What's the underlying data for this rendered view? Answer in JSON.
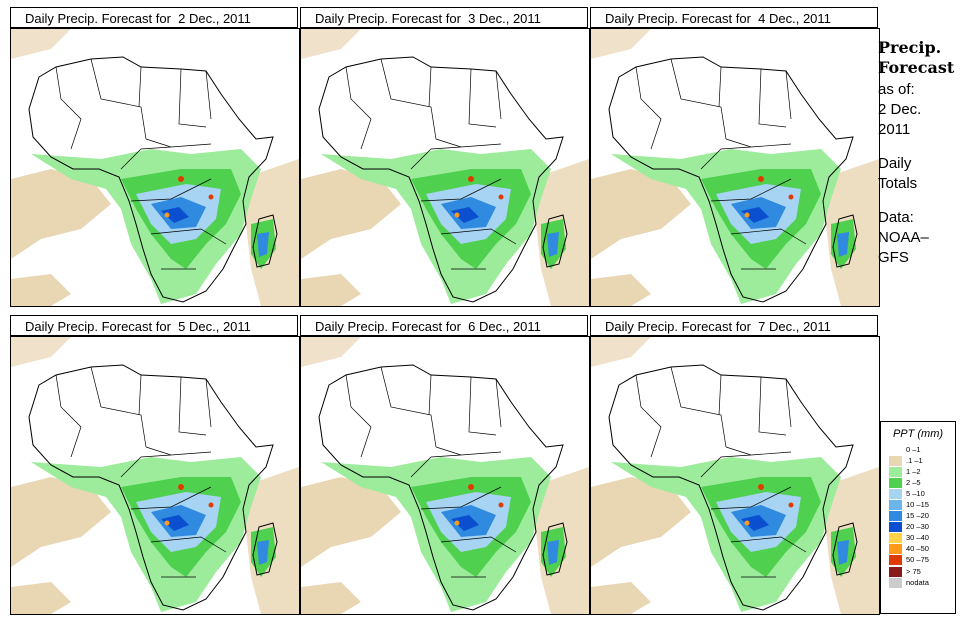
{
  "panels": [
    {
      "title": "Daily Precip. Forecast for  2 Dec., 2011",
      "day": 2
    },
    {
      "title": "Daily Precip. Forecast for  3 Dec., 2011",
      "day": 3
    },
    {
      "title": "Daily Precip. Forecast for  4 Dec., 2011",
      "day": 4
    },
    {
      "title": "Daily Precip. Forecast for  5 Dec., 2011",
      "day": 5
    },
    {
      "title": "Daily Precip. Forecast for  6 Dec., 2011",
      "day": 6
    },
    {
      "title": "Daily Precip. Forecast for  7 Dec., 2011",
      "day": 7
    }
  ],
  "sidebar": {
    "title_line1": "Precip.",
    "title_line2": "Forecast",
    "asof_line1": "as of:",
    "asof_line2": "2 Dec.",
    "asof_line3": "2011",
    "totals_line1": "Daily",
    "totals_line2": "Totals",
    "data_line1": "Data:",
    "data_line2": "NOAA–",
    "data_line3": "GFS"
  },
  "legend": {
    "title": "PPT (mm)",
    "items": [
      {
        "label": "0 –1",
        "color": "#ffffff"
      },
      {
        "label": ".1 –1",
        "color": "#e9d6b3"
      },
      {
        "label": "1 –2",
        "color": "#9cec9c"
      },
      {
        "label": "2 –5",
        "color": "#4fd04f"
      },
      {
        "label": "5 –10",
        "color": "#a6d4f2"
      },
      {
        "label": "10 –15",
        "color": "#6bb4ec"
      },
      {
        "label": "15 –20",
        "color": "#2f8ae0"
      },
      {
        "label": "20 –30",
        "color": "#0a4fd0"
      },
      {
        "label": "30 –40",
        "color": "#ffd24a"
      },
      {
        "label": "40 –50",
        "color": "#ff9a1a"
      },
      {
        "label": "50 –75",
        "color": "#e03a00"
      },
      {
        "label": "> 75",
        "color": "#8a1a1a"
      },
      {
        "label": "nodata",
        "color": "#cccccc"
      }
    ]
  },
  "colors": {
    "dry": "#e9d6b3",
    "light_green": "#9cec9c",
    "green": "#4fd04f",
    "light_blue": "#a6d4f2",
    "blue": "#2f8ae0",
    "dark_blue": "#0a4fd0",
    "orange": "#ff9a1a",
    "red": "#e03a00"
  }
}
